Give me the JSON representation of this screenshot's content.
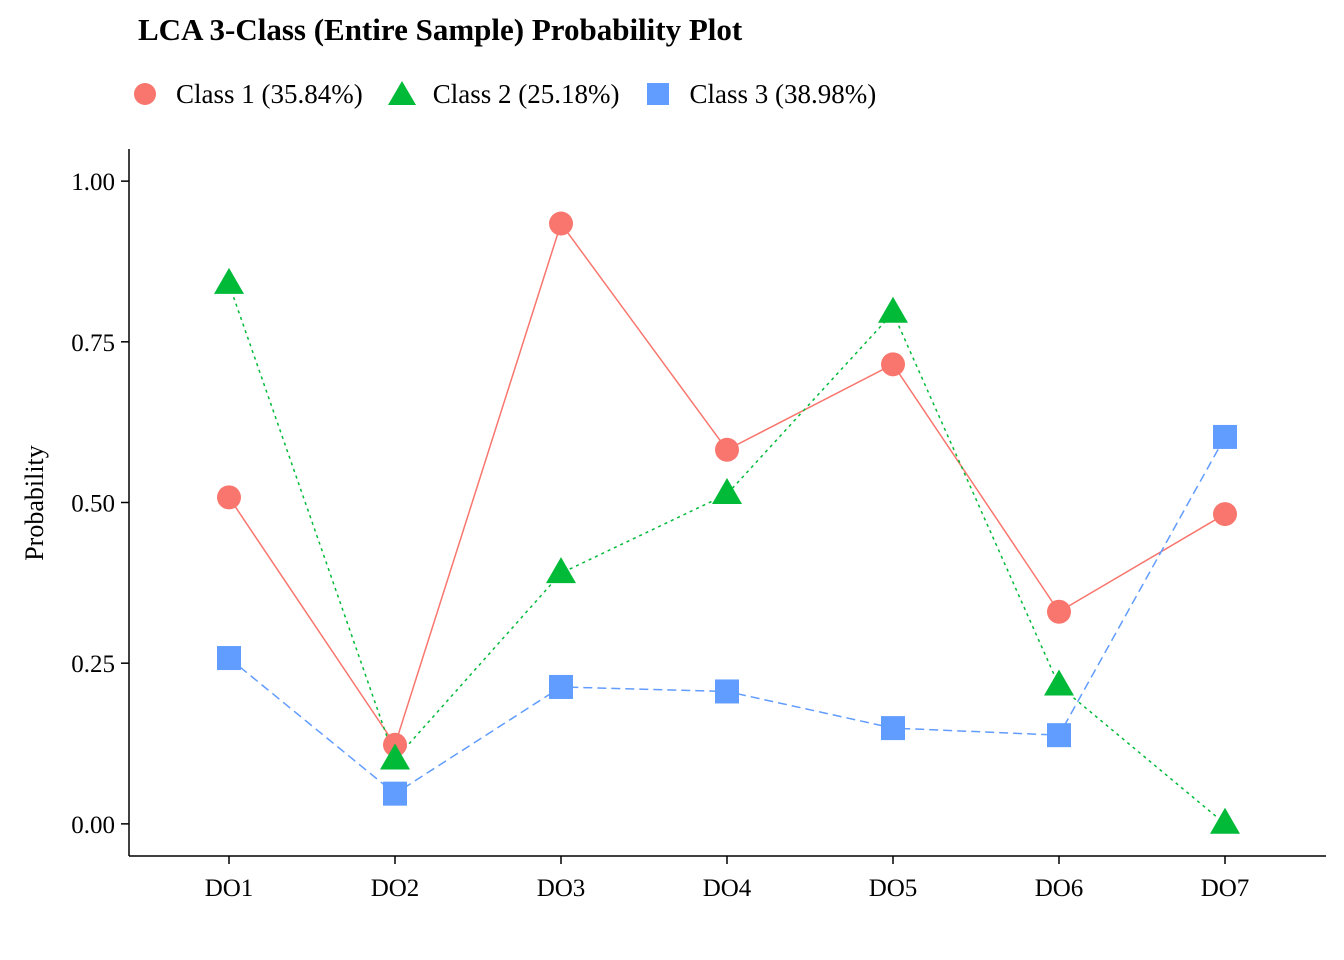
{
  "chart_data": {
    "type": "line",
    "title": "LCA 3-Class (Entire Sample) Probability Plot",
    "xlabel": "",
    "ylabel": "Probability",
    "categories": [
      "DO1",
      "DO2",
      "DO3",
      "DO4",
      "DO5",
      "DO6",
      "DO7"
    ],
    "ylim": [
      -0.05,
      1.05
    ],
    "yticks": [
      0.0,
      0.25,
      0.5,
      0.75,
      1.0
    ],
    "ytick_labels": [
      "0.00",
      "0.25",
      "0.50",
      "0.75",
      "1.00"
    ],
    "grid": false,
    "legend_position": "top",
    "series": [
      {
        "name": "Class 1 (35.84%)",
        "marker": "circle",
        "line": "solid",
        "color": "#F8766D",
        "values": [
          0.508,
          0.123,
          0.934,
          0.582,
          0.715,
          0.33,
          0.482
        ]
      },
      {
        "name": "Class 2 (25.18%)",
        "marker": "triangle",
        "line": "dotted",
        "color": "#00BA38",
        "values": [
          0.84,
          0.1,
          0.39,
          0.513,
          0.795,
          0.215,
          0.0
        ]
      },
      {
        "name": "Class 3 (38.98%)",
        "marker": "square",
        "line": "dashed",
        "color": "#619CFF",
        "values": [
          0.258,
          0.047,
          0.213,
          0.206,
          0.149,
          0.138,
          0.602
        ]
      }
    ]
  }
}
